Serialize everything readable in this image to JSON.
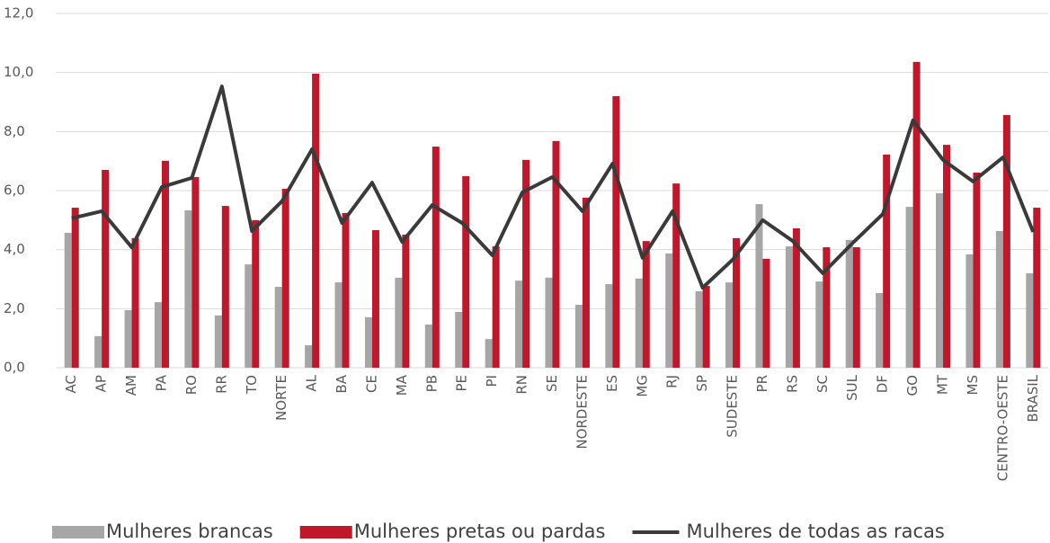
{
  "chart_data": {
    "type": "bar",
    "categories": [
      "AC",
      "AP",
      "AM",
      "PA",
      "RO",
      "RR",
      "TO",
      "NORTE",
      "AL",
      "BA",
      "CE",
      "MA",
      "PB",
      "PE",
      "PI",
      "RN",
      "SE",
      "NORDESTE",
      "ES",
      "MG",
      "RJ",
      "SP",
      "SUDESTE",
      "PR",
      "RS",
      "SC",
      "SUL",
      "DF",
      "GO",
      "MT",
      "MS",
      "CENTRO-OESTE",
      "BRASIL"
    ],
    "series": [
      {
        "name": "Mulheres brancas",
        "type": "bar",
        "color": "#a6a6a6",
        "values": [
          4.57,
          1.07,
          1.95,
          2.22,
          5.33,
          1.77,
          3.5,
          2.74,
          0.76,
          2.89,
          1.71,
          3.05,
          1.46,
          1.89,
          0.97,
          2.95,
          3.05,
          2.13,
          2.83,
          3.02,
          3.87,
          2.59,
          2.89,
          5.54,
          4.11,
          2.92,
          4.33,
          2.53,
          5.45,
          5.91,
          3.84,
          4.63,
          3.2
        ]
      },
      {
        "name": "Mulheres pretas ou pardas",
        "type": "bar",
        "color": "#c0172b",
        "values": [
          5.42,
          6.7,
          4.39,
          7.01,
          6.46,
          5.48,
          5.0,
          6.06,
          9.96,
          5.24,
          4.66,
          4.51,
          7.49,
          6.49,
          4.11,
          7.04,
          7.68,
          5.76,
          9.2,
          4.29,
          6.24,
          2.77,
          4.39,
          3.69,
          4.72,
          4.08,
          4.08,
          7.22,
          10.36,
          7.55,
          6.61,
          8.56,
          5.42
        ]
      },
      {
        "name": "Mulheres de todas as racas",
        "type": "line",
        "color": "#3a3a3a",
        "values": [
          5.06,
          5.3,
          4.08,
          6.12,
          6.43,
          9.53,
          4.63,
          5.64,
          7.4,
          4.9,
          6.27,
          4.26,
          5.51,
          4.9,
          3.81,
          5.94,
          6.46,
          5.3,
          6.91,
          3.72,
          5.3,
          2.71,
          3.66,
          5.0,
          4.29,
          3.2,
          4.23,
          5.21,
          8.38,
          7.04,
          6.31,
          7.13,
          4.6
        ]
      }
    ],
    "ylim": [
      0,
      12
    ],
    "yticks": [
      {
        "value": 0,
        "label": "0,0"
      },
      {
        "value": 2,
        "label": "2,0"
      },
      {
        "value": 4,
        "label": "4,0"
      },
      {
        "value": 6,
        "label": "6,0"
      },
      {
        "value": 8,
        "label": "8,0"
      },
      {
        "value": 10,
        "label": "10,0"
      },
      {
        "value": 12,
        "label": "12,0"
      }
    ],
    "grid": true,
    "legend": "bottom"
  }
}
